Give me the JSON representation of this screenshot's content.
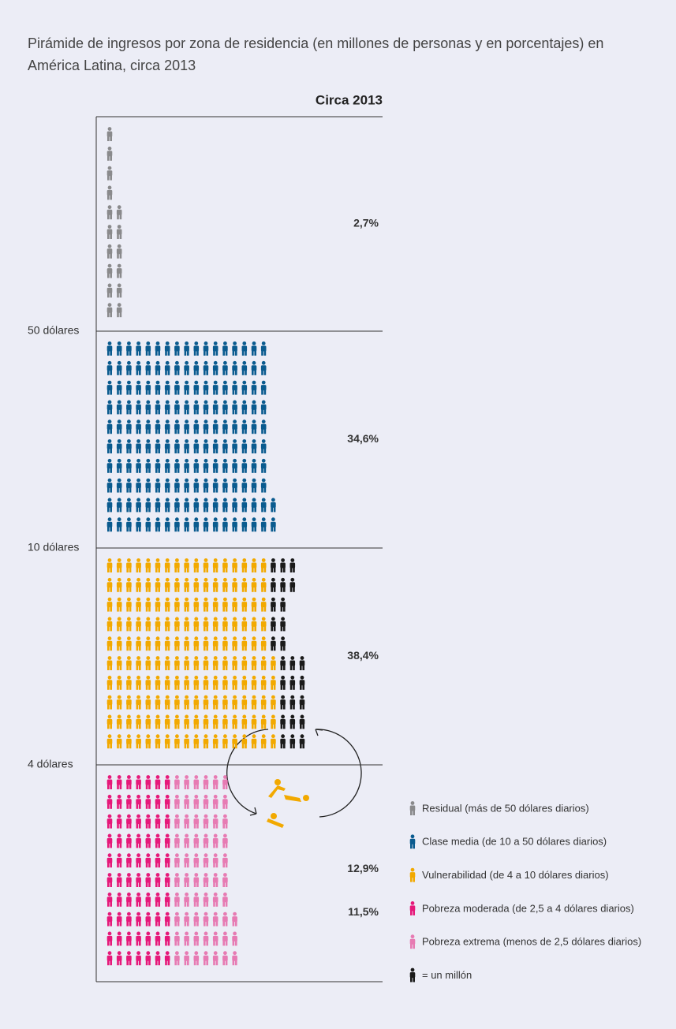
{
  "title_lines": [
    "Pirámide de ingresos por zona de residencia (en millones de personas y en porcentajes) en",
    "América Latina, circa 2013"
  ],
  "header": "Circa 2013",
  "thresholds": [
    "50 dólares",
    "10 dólares",
    "4 dólares"
  ],
  "sections": [
    {
      "labels": [
        {
          "text": "2,7%",
          "color": "#8a8a8c"
        }
      ],
      "colors": [
        "#8a8a8c"
      ],
      "rows": [
        [
          1
        ],
        [
          1
        ],
        [
          1
        ],
        [
          1
        ],
        [
          2
        ],
        [
          2
        ],
        [
          2
        ],
        [
          2
        ],
        [
          2
        ],
        [
          2
        ]
      ]
    },
    {
      "labels": [
        {
          "text": "34,6%",
          "color": "#0a5b8f"
        }
      ],
      "colors": [
        "#0a5b8f"
      ],
      "rows": [
        [
          17
        ],
        [
          17
        ],
        [
          17
        ],
        [
          17
        ],
        [
          17
        ],
        [
          17
        ],
        [
          17
        ],
        [
          17
        ],
        [
          18
        ],
        [
          18
        ]
      ]
    },
    {
      "labels": [
        {
          "text": "38,4%",
          "color": "#f2a900"
        }
      ],
      "colors": [
        "#f2a900",
        "#1a1a1a"
      ],
      "rows": [
        [
          17,
          3
        ],
        [
          17,
          3
        ],
        [
          17,
          2
        ],
        [
          17,
          2
        ],
        [
          17,
          2
        ],
        [
          18,
          3
        ],
        [
          18,
          3
        ],
        [
          18,
          3
        ],
        [
          18,
          3
        ],
        [
          18,
          3
        ]
      ]
    },
    {
      "labels": [
        {
          "text": "12,9%",
          "color": "#e6197a"
        },
        {
          "text": "11,5%",
          "color": "#e77bb3"
        }
      ],
      "colors": [
        "#e6197a",
        "#e77bb3"
      ],
      "rows": [
        [
          7,
          6
        ],
        [
          7,
          6
        ],
        [
          7,
          6
        ],
        [
          7,
          6
        ],
        [
          7,
          6
        ],
        [
          7,
          6
        ],
        [
          7,
          6
        ],
        [
          7,
          7
        ],
        [
          7,
          7
        ],
        [
          7,
          7
        ]
      ]
    }
  ],
  "legend": [
    {
      "text": "Residual (más de 50 dólares diarios)",
      "color": "#8a8a8c"
    },
    {
      "text": "Clase media (de 10 a 50 dólares diarios)",
      "color": "#0a5b8f"
    },
    {
      "text": "Vulnerabilidad (de 4 a 10 dólares diarios)",
      "color": "#f2a900"
    },
    {
      "text": "Pobreza moderada (de 2,5 a 4 dólares diarios)",
      "color": "#e6197a"
    },
    {
      "text": "Pobreza extrema (menos de 2,5 dólares diarios)",
      "color": "#e77bb3"
    },
    {
      "text": "= un millón",
      "color": "#1a1a1a"
    }
  ]
}
